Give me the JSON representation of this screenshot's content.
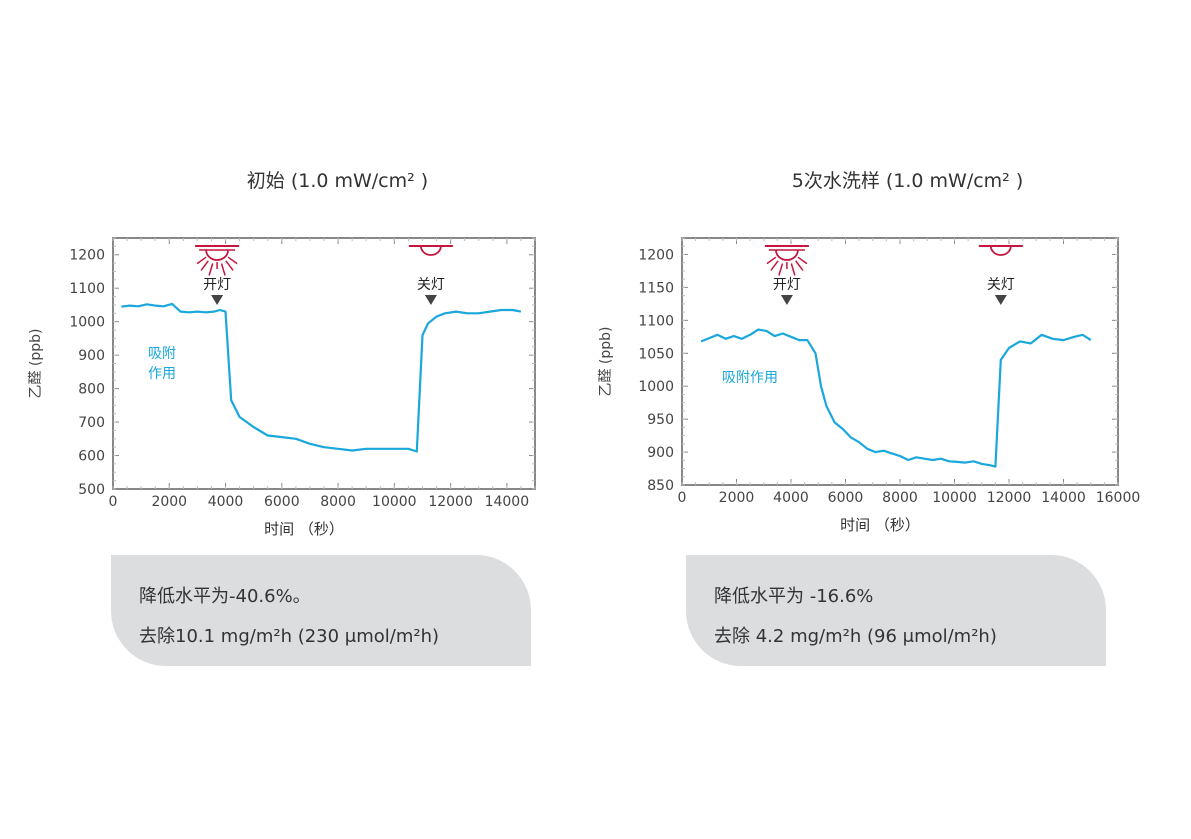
{
  "colors": {
    "line": "#1aa7dc",
    "frame": "#888888",
    "grid": "#bbbbbb",
    "lamp": "#c4163f",
    "box": "#dcdddf"
  },
  "charts": [
    {
      "title": "初始 (1.0 mW/cm² )",
      "ylabel": "乙醛 (ppb)",
      "xlabel": "时间 （秒）",
      "note_lines": [
        "吸附",
        "作用"
      ],
      "on_label": "开灯",
      "off_label": "关灯",
      "on_x": 3700,
      "off_x": 11300,
      "summary_line1": "降低水平为-40.6%。",
      "summary_line2": "去除10.1 mg/m²h (230 μmol/m²h)"
    },
    {
      "title": "5次水洗样 (1.0 mW/cm² )",
      "ylabel": "乙醛 (ppb)",
      "xlabel": "时间 （秒）",
      "note_lines": [
        "吸附作用"
      ],
      "on_label": "开灯",
      "off_label": "关灯",
      "on_x": 3850,
      "off_x": 11700,
      "summary_line1": "降低水平为 -16.6%",
      "summary_line2": "去除  4.2 mg/m²h (96 μmol/m²h)"
    }
  ],
  "chart_data": [
    {
      "type": "line",
      "title": "初始 (1.0 mW/cm² )",
      "xlabel": "时间 （秒）",
      "ylabel": "乙醛 (ppb)",
      "xlim": [
        0,
        15000
      ],
      "ylim": [
        500,
        1250
      ],
      "xticks": [
        0,
        2000,
        4000,
        6000,
        8000,
        10000,
        12000,
        14000
      ],
      "yticks": [
        500,
        600,
        700,
        800,
        900,
        1000,
        1100,
        1200
      ],
      "grid": "ticks-only",
      "series": [
        {
          "x": [
            300,
            600,
            900,
            1200,
            1500,
            1800,
            2100,
            2400,
            2700,
            3000,
            3300,
            3600,
            3800,
            4000,
            4200,
            4500,
            5000,
            5500,
            6000,
            6500,
            7000,
            7500,
            8000,
            8500,
            9000,
            9500,
            10000,
            10500,
            10800,
            11000,
            11200,
            11500,
            11800,
            12200,
            12600,
            13000,
            13400,
            13800,
            14200,
            14500
          ],
          "y": [
            1045,
            1048,
            1046,
            1052,
            1048,
            1046,
            1053,
            1030,
            1028,
            1030,
            1028,
            1030,
            1035,
            1030,
            765,
            715,
            685,
            660,
            655,
            650,
            635,
            625,
            620,
            615,
            620,
            620,
            620,
            620,
            612,
            960,
            995,
            1015,
            1025,
            1030,
            1025,
            1025,
            1030,
            1035,
            1035,
            1030
          ]
        }
      ]
    },
    {
      "type": "line",
      "title": "5次水洗样 (1.0 mW/cm² )",
      "xlabel": "时间 （秒）",
      "ylabel": "乙醛 (ppb)",
      "xlim": [
        0,
        16000
      ],
      "ylim": [
        850,
        1225
      ],
      "xticks": [
        0,
        2000,
        4000,
        6000,
        8000,
        10000,
        12000,
        14000,
        16000
      ],
      "yticks": [
        850,
        900,
        950,
        1000,
        1050,
        1100,
        1150,
        1200
      ],
      "grid": "ticks-only",
      "series": [
        {
          "x": [
            700,
            1000,
            1300,
            1600,
            1900,
            2200,
            2500,
            2800,
            3100,
            3400,
            3700,
            4000,
            4300,
            4600,
            4900,
            5100,
            5300,
            5600,
            5900,
            6200,
            6500,
            6800,
            7100,
            7400,
            7700,
            8000,
            8300,
            8600,
            8900,
            9200,
            9500,
            9800,
            10100,
            10400,
            10700,
            11000,
            11300,
            11500,
            11700,
            12000,
            12400,
            12800,
            13200,
            13600,
            14000,
            14400,
            14700,
            15000
          ],
          "y": [
            1068,
            1073,
            1078,
            1072,
            1076,
            1072,
            1078,
            1086,
            1084,
            1076,
            1080,
            1075,
            1070,
            1070,
            1050,
            1000,
            970,
            945,
            935,
            922,
            915,
            905,
            900,
            902,
            898,
            894,
            888,
            892,
            890,
            888,
            890,
            886,
            885,
            884,
            886,
            882,
            880,
            878,
            1040,
            1058,
            1068,
            1065,
            1078,
            1072,
            1070,
            1075,
            1078,
            1070
          ]
        }
      ]
    }
  ]
}
